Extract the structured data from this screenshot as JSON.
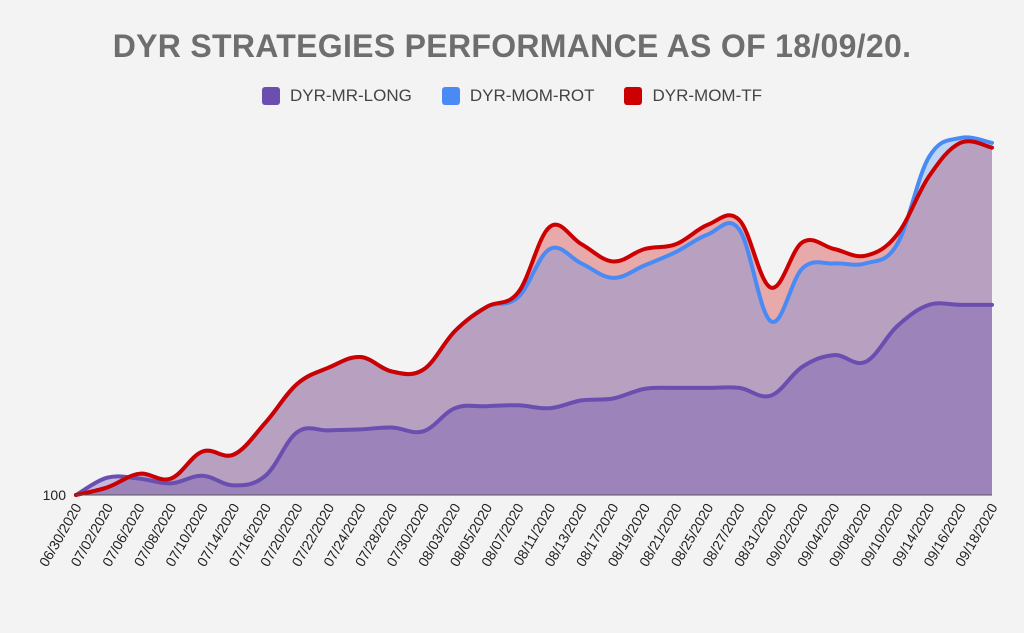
{
  "chart_data": {
    "type": "area",
    "title": "DYR STRATEGIES PERFORMANCE AS OF 18/09/20.",
    "xlabel": "",
    "ylabel": "",
    "y_tick_labels": [
      "100"
    ],
    "legend_position": "top",
    "grid": false,
    "categories": [
      "06/30/2020",
      "07/02/2020",
      "07/06/2020",
      "07/08/2020",
      "07/10/2020",
      "07/14/2020",
      "07/16/2020",
      "07/20/2020",
      "07/22/2020",
      "07/24/2020",
      "07/28/2020",
      "07/30/2020",
      "08/03/2020",
      "08/05/2020",
      "08/07/2020",
      "08/11/2020",
      "08/13/2020",
      "08/17/2020",
      "08/19/2020",
      "08/21/2020",
      "08/25/2020",
      "08/27/2020",
      "08/31/2020",
      "09/02/2020",
      "09/04/2020",
      "09/08/2020",
      "09/10/2020",
      "09/14/2020",
      "09/16/2020",
      "09/18/2020"
    ],
    "ylim": [
      100,
      137
    ],
    "series": [
      {
        "name": "DYR-MR-LONG",
        "color": "#6a4fb0",
        "values": [
          100,
          101.8,
          101.7,
          101.2,
          102.0,
          101.0,
          102.0,
          106.5,
          106.7,
          106.8,
          107.0,
          106.6,
          109.0,
          109.2,
          109.3,
          109.0,
          109.8,
          110.0,
          111.0,
          111.1,
          111.1,
          111.1,
          110.3,
          113.3,
          114.5,
          113.8,
          117.5,
          119.7,
          119.7,
          119.7
        ]
      },
      {
        "name": "DYR-MOM-ROT",
        "color": "#4a8af4",
        "values": [
          100,
          100.8,
          102.2,
          101.7,
          104.5,
          104.2,
          107.5,
          111.5,
          113.2,
          114.3,
          112.8,
          113.0,
          117.0,
          119.5,
          120.5,
          125.5,
          124.0,
          122.5,
          123.8,
          125.2,
          127.0,
          127.5,
          118.0,
          123.5,
          124.0,
          124.0,
          126.0,
          135.0,
          137.0,
          136.5
        ]
      },
      {
        "name": "DYR-MOM-TF",
        "color": "#cc0000",
        "values": [
          100,
          100.8,
          102.2,
          101.7,
          104.5,
          104.2,
          107.5,
          111.5,
          113.2,
          114.3,
          112.8,
          113.0,
          117.0,
          119.5,
          121.0,
          127.8,
          126.0,
          124.2,
          125.5,
          126.0,
          128.0,
          128.5,
          121.5,
          126.2,
          125.5,
          124.8,
          127.0,
          133.0,
          136.5,
          136.0
        ]
      }
    ]
  }
}
